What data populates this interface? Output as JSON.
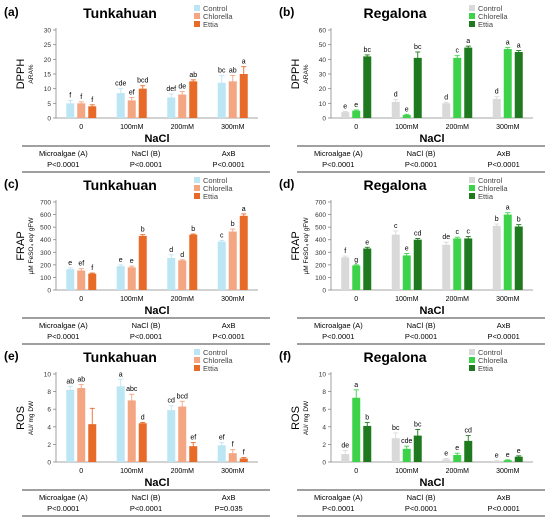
{
  "figure": {
    "title": ""
  },
  "chart_data": [
    {
      "panel": "(a)",
      "title": "Tunkahuan",
      "type": "bar",
      "ylabel": "DPPH",
      "yunit": "ARA%",
      "xlabel": "NaCl",
      "ylim": [
        0,
        30
      ],
      "yticks": [
        0,
        5,
        10,
        15,
        20,
        25,
        30
      ],
      "categories": [
        "0",
        "100mM",
        "200mM",
        "300mM"
      ],
      "series": [
        {
          "name": "Control",
          "color": "#bde6f4",
          "values": [
            5,
            8.5,
            7,
            12
          ],
          "err": [
            1,
            1.5,
            1.2,
            2.5
          ],
          "letters": [
            "f",
            "cde",
            "def",
            "bc"
          ]
        },
        {
          "name": "Chlorella",
          "color": "#f4a582",
          "values": [
            5,
            6,
            8,
            12.5
          ],
          "err": [
            0.5,
            1,
            1,
            2
          ],
          "letters": [
            "f",
            "ef",
            "de",
            "ab"
          ]
        },
        {
          "name": "Ettia",
          "color": "#e86a28",
          "values": [
            4,
            10,
            12.5,
            15
          ],
          "err": [
            0.5,
            1,
            0.5,
            2.5
          ],
          "letters": [
            "f",
            "bcd",
            "ab",
            "a"
          ]
        }
      ],
      "stats": {
        "labels": [
          "Microalgae (A)",
          "NaCl (B)",
          "AxB"
        ],
        "values": [
          "P<0.0001",
          "P<0.0001",
          "P<0.0001"
        ]
      }
    },
    {
      "panel": "(b)",
      "title": "Regalona",
      "type": "bar",
      "ylabel": "DPPH",
      "yunit": "ARA%",
      "xlabel": "NaCl",
      "ylim": [
        0,
        60
      ],
      "yticks": [
        0,
        10,
        20,
        30,
        40,
        50,
        60
      ],
      "categories": [
        "0",
        "100mM",
        "200mM",
        "300mM"
      ],
      "series": [
        {
          "name": "Control",
          "color": "#d9d9d9",
          "values": [
            4,
            11,
            10,
            13
          ],
          "err": [
            0.5,
            1.5,
            0.5,
            1.5
          ],
          "letters": [
            "e",
            "d",
            "d",
            "d"
          ]
        },
        {
          "name": "Chlorella",
          "color": "#3cd24a",
          "values": [
            5,
            2,
            41,
            47
          ],
          "err": [
            0.5,
            0.5,
            1.5,
            1
          ],
          "letters": [
            "e",
            "e",
            "c",
            "a"
          ]
        },
        {
          "name": "Ettia",
          "color": "#1f7a1f",
          "values": [
            42,
            41,
            48,
            45
          ],
          "err": [
            1,
            4,
            1,
            1
          ],
          "letters": [
            "bc",
            "bc",
            "a",
            "a"
          ]
        }
      ],
      "stats": {
        "labels": [
          "Microalgae (A)",
          "NaCl (B)",
          "AxB"
        ],
        "values": [
          "P<0.0001",
          "P<0.0001",
          "P<0.0001"
        ]
      }
    },
    {
      "panel": "(c)",
      "title": "Tunkahuan",
      "type": "bar",
      "ylabel": "FRAP",
      "yunit": "µM FeSO₄ eq/ gFW",
      "xlabel": "NaCl",
      "ylim": [
        0,
        700
      ],
      "yticks": [
        0,
        100,
        200,
        300,
        400,
        500,
        600,
        700
      ],
      "categories": [
        "0",
        "100mM",
        "200mM",
        "300mM"
      ],
      "series": [
        {
          "name": "Control",
          "color": "#bde6f4",
          "values": [
            165,
            190,
            255,
            385
          ],
          "err": [
            10,
            10,
            25,
            10
          ],
          "letters": [
            "e",
            "e",
            "d",
            "c"
          ]
        },
        {
          "name": "Chlorella",
          "color": "#f4a582",
          "values": [
            155,
            180,
            235,
            465
          ],
          "err": [
            15,
            10,
            5,
            20
          ],
          "letters": [
            "ef",
            "e",
            "d",
            "b"
          ]
        },
        {
          "name": "Ettia",
          "color": "#e86a28",
          "values": [
            130,
            430,
            440,
            590
          ],
          "err": [
            5,
            10,
            5,
            15
          ],
          "letters": [
            "f",
            "b",
            "b",
            "a"
          ]
        }
      ],
      "stats": {
        "labels": [
          "Microalgae (A)",
          "NaCl (B)",
          "AxB"
        ],
        "values": [
          "P<0.0001",
          "P<0.0001",
          "P<0.0001"
        ]
      }
    },
    {
      "panel": "(d)",
      "title": "Regalona",
      "type": "bar",
      "ylabel": "FRAP",
      "yunit": "µM FeSO₄ eq/ gFW",
      "xlabel": "NaCl",
      "ylim": [
        0,
        700
      ],
      "yticks": [
        0,
        100,
        200,
        300,
        400,
        500,
        600,
        700
      ],
      "categories": [
        "0",
        "100mM",
        "200mM",
        "300mM"
      ],
      "series": [
        {
          "name": "Control",
          "color": "#d9d9d9",
          "values": [
            260,
            440,
            360,
            510
          ],
          "err": [
            10,
            30,
            20,
            15
          ],
          "letters": [
            "f",
            "c",
            "de",
            "b"
          ]
        },
        {
          "name": "Chlorella",
          "color": "#3cd24a",
          "values": [
            195,
            275,
            410,
            600
          ],
          "err": [
            5,
            15,
            10,
            15
          ],
          "letters": [
            "g",
            "e",
            "c",
            "a"
          ]
        },
        {
          "name": "Ettia",
          "color": "#1f7a1f",
          "values": [
            330,
            400,
            410,
            505
          ],
          "err": [
            10,
            10,
            15,
            15
          ],
          "letters": [
            "e",
            "cd",
            "c",
            "b"
          ]
        }
      ],
      "stats": {
        "labels": [
          "Microalgae (A)",
          "NaCl (B)",
          "AxB"
        ],
        "values": [
          "P<0.0001",
          "P<0.0001",
          "P<0.0001"
        ]
      }
    },
    {
      "panel": "(e)",
      "title": "Tunkahuan",
      "type": "bar",
      "ylabel": "ROS",
      "yunit": "AU/ mg DW",
      "xlabel": "NaCl",
      "ylim": [
        0,
        10
      ],
      "yticks": [
        0,
        2,
        4,
        6,
        8,
        10
      ],
      "categories": [
        "0",
        "100mM",
        "200mM",
        "300mM"
      ],
      "series": [
        {
          "name": "Control",
          "color": "#bde6f4",
          "values": [
            8.2,
            8.6,
            5.9,
            1.9
          ],
          "err": [
            0.4,
            0.8,
            0.5,
            0.3
          ],
          "letters": [
            "ab",
            "a",
            "cd",
            "ef"
          ]
        },
        {
          "name": "Chlorella",
          "color": "#f4a582",
          "values": [
            8.4,
            7.0,
            6.3,
            1.0
          ],
          "err": [
            0.4,
            0.7,
            0.6,
            0.4
          ],
          "letters": [
            "ab",
            "abc",
            "bcd",
            "f"
          ]
        },
        {
          "name": "Ettia",
          "color": "#e86a28",
          "values": [
            4.3,
            4.4,
            1.8,
            0.4
          ],
          "err": [
            1.8,
            0.1,
            0.4,
            0.1
          ],
          "letters": [
            "",
            "d",
            "ef",
            "f"
          ]
        }
      ],
      "stats": {
        "labels": [
          "Microalgae (A)",
          "NaCl (B)",
          "AxB"
        ],
        "values": [
          "P<0.0001",
          "P<0.0001",
          "P=0.035"
        ]
      }
    },
    {
      "panel": "(f)",
      "title": "Regalona",
      "type": "bar",
      "ylabel": "ROS",
      "yunit": "AU/ mg DW",
      "xlabel": "NaCl",
      "ylim": [
        0,
        10
      ],
      "yticks": [
        0,
        2,
        4,
        6,
        8,
        10
      ],
      "categories": [
        "0",
        "100mM",
        "200mM",
        "300mM"
      ],
      "series": [
        {
          "name": "Control",
          "color": "#d9d9d9",
          "values": [
            0.9,
            2.7,
            0.3,
            0.1
          ],
          "err": [
            0.4,
            0.6,
            0.1,
            0.05
          ],
          "letters": [
            "de",
            "bc",
            "e",
            "e"
          ]
        },
        {
          "name": "Chlorella",
          "color": "#3cd24a",
          "values": [
            7.3,
            1.5,
            0.8,
            0.2
          ],
          "err": [
            0.9,
            0.3,
            0.2,
            0.05
          ],
          "letters": [
            "a",
            "cde",
            "e",
            "e"
          ]
        },
        {
          "name": "Ettia",
          "color": "#1f7a1f",
          "values": [
            4.1,
            3.0,
            2.4,
            0.6
          ],
          "err": [
            0.4,
            0.7,
            0.6,
            0.1
          ],
          "letters": [
            "b",
            "bc",
            "cd",
            "e"
          ]
        }
      ],
      "stats": {
        "labels": [
          "Microalgae (A)",
          "NaCl (B)",
          "AxB"
        ],
        "values": [
          "P<0.0001",
          "P<0.0001",
          "P<0.0001"
        ]
      }
    }
  ]
}
